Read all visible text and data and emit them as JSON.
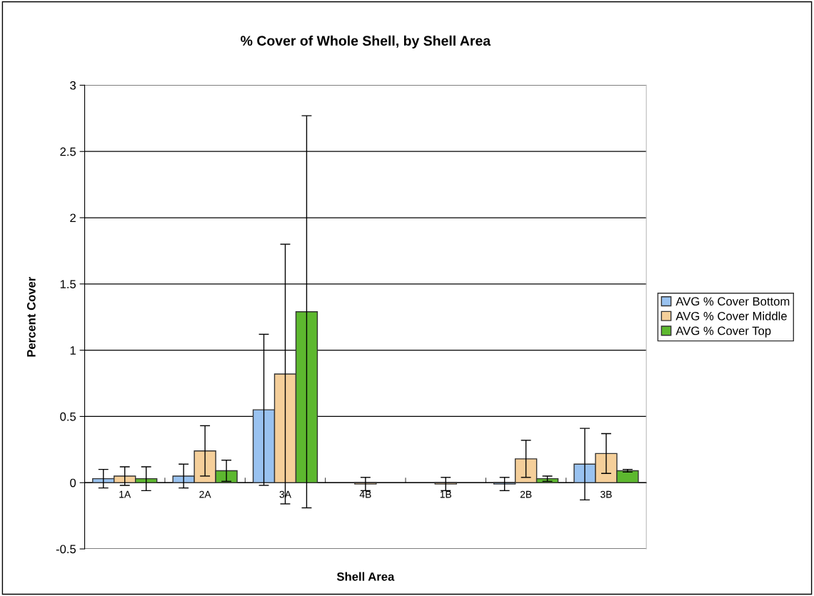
{
  "chart_data": {
    "type": "bar",
    "title": "% Cover of Whole Shell, by Shell Area",
    "xlabel": "Shell Area",
    "ylabel": "Percent Cover",
    "categories": [
      "1A",
      "2A",
      "3A",
      "4B",
      "1B",
      "2B",
      "3B"
    ],
    "series": [
      {
        "name": "AVG % Cover Bottom",
        "color": "#99c2f0",
        "values": [
          0.03,
          0.05,
          0.55,
          null,
          null,
          -0.01,
          0.14
        ],
        "errors": [
          0.07,
          0.09,
          0.57,
          null,
          null,
          0.05,
          0.27
        ]
      },
      {
        "name": "AVG % Cover Middle",
        "color": "#f5cf9a",
        "values": [
          0.05,
          0.24,
          0.82,
          -0.01,
          -0.01,
          0.18,
          0.22
        ],
        "errors": [
          0.07,
          0.19,
          0.98,
          0.05,
          0.05,
          0.14,
          0.15
        ]
      },
      {
        "name": "AVG % Cover Top",
        "color": "#5db82f",
        "values": [
          0.03,
          0.09,
          1.29,
          null,
          null,
          0.03,
          0.09
        ],
        "errors": [
          0.09,
          0.08,
          1.48,
          null,
          null,
          0.02,
          0.01
        ]
      }
    ],
    "ylim": [
      -0.5,
      3
    ],
    "yticks": [
      -0.5,
      0,
      0.5,
      1,
      1.5,
      2,
      2.5,
      3
    ],
    "grid": "y",
    "legend": "right"
  }
}
